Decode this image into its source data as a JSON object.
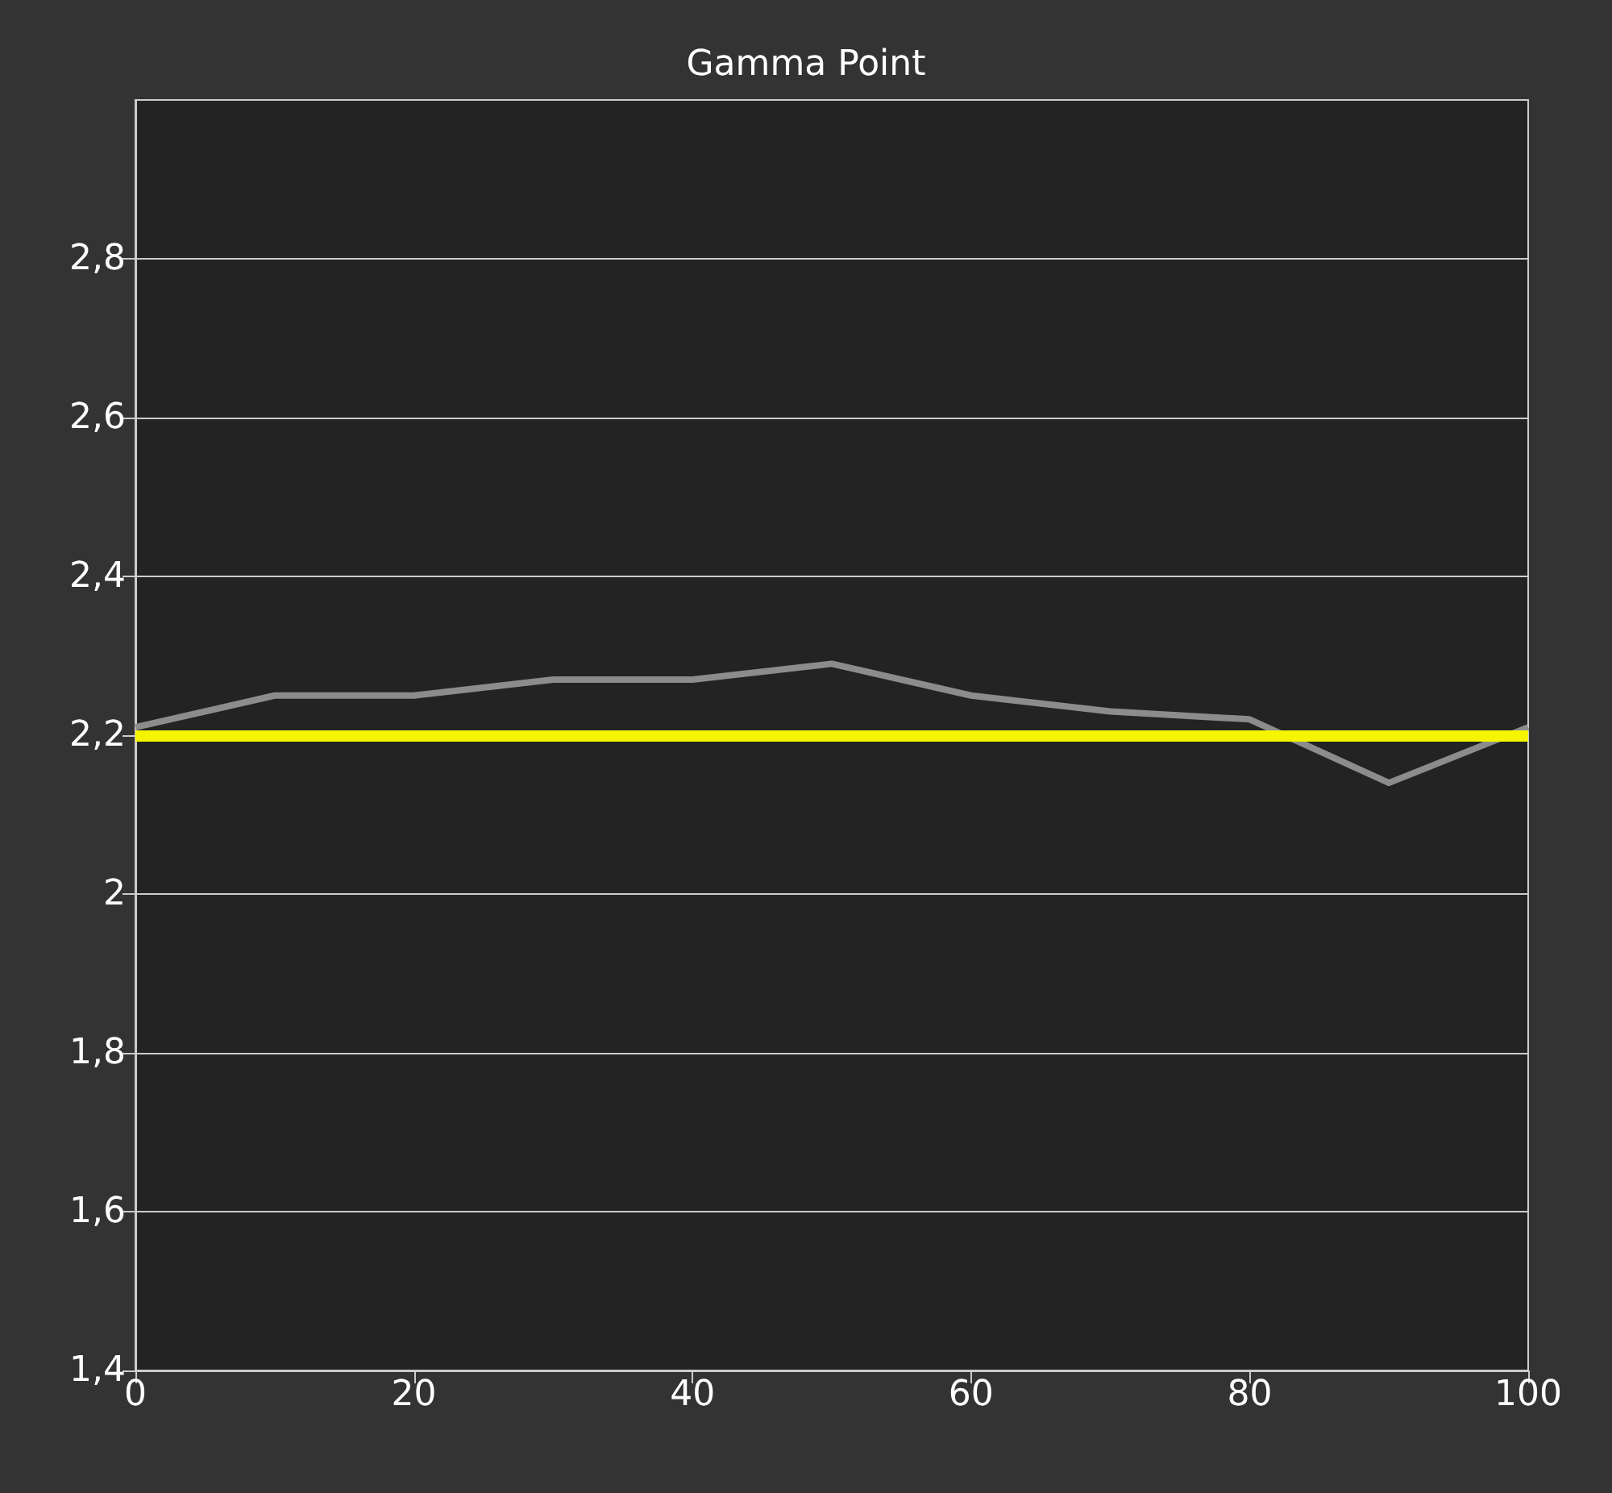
{
  "chart_data": {
    "type": "line",
    "title": "Gamma Point",
    "x": [
      0,
      10,
      20,
      30,
      40,
      50,
      60,
      70,
      80,
      90,
      100
    ],
    "series": [
      {
        "color": "#8c8c8c",
        "values": [
          2.21,
          2.25,
          2.25,
          2.27,
          2.27,
          2.29,
          2.25,
          2.23,
          2.22,
          2.14,
          2.21
        ]
      }
    ],
    "xlim": [
      0,
      100
    ],
    "xticks": [
      0,
      20,
      40,
      60,
      80,
      100
    ],
    "ylim": [
      1.4,
      3.0
    ],
    "yticks": [
      {
        "value": 1.4,
        "label": "1,4"
      },
      {
        "value": 1.6,
        "label": "1,6"
      },
      {
        "value": 1.8,
        "label": "1,8"
      },
      {
        "value": 2,
        "label": "2"
      },
      {
        "value": 2.2,
        "label": "2,2"
      },
      {
        "value": 2.4,
        "label": "2,4"
      },
      {
        "value": 2.6,
        "label": "2,6"
      },
      {
        "value": 2.8,
        "label": "2,8"
      }
    ],
    "ref_lines": [
      {
        "axis": "y",
        "value": 2.2,
        "color": "#f5f500"
      }
    ],
    "grid": "y",
    "marker": "none",
    "line_style": "solid"
  }
}
